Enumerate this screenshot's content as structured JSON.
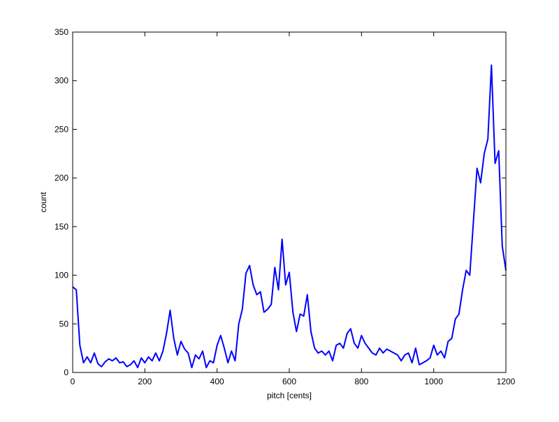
{
  "chart_data": {
    "type": "line",
    "title": "",
    "xlabel": "pitch [cents]",
    "ylabel": "count",
    "xlim": [
      0,
      1200
    ],
    "ylim": [
      0,
      350
    ],
    "xticks": [
      0,
      200,
      400,
      600,
      800,
      1000,
      1200
    ],
    "yticks": [
      0,
      50,
      100,
      150,
      200,
      250,
      300,
      350
    ],
    "grid": false,
    "legend": "none",
    "series": [
      {
        "color": "#0000ff",
        "x": [
          0,
          10,
          20,
          30,
          40,
          50,
          60,
          70,
          80,
          90,
          100,
          110,
          120,
          130,
          140,
          150,
          160,
          170,
          180,
          190,
          200,
          210,
          220,
          230,
          240,
          250,
          260,
          270,
          280,
          290,
          300,
          310,
          320,
          330,
          340,
          350,
          360,
          370,
          380,
          390,
          400,
          410,
          420,
          430,
          440,
          450,
          460,
          470,
          480,
          490,
          500,
          510,
          520,
          530,
          540,
          550,
          560,
          570,
          580,
          590,
          600,
          610,
          620,
          630,
          640,
          650,
          660,
          670,
          680,
          690,
          700,
          710,
          720,
          730,
          740,
          750,
          760,
          770,
          780,
          790,
          800,
          810,
          820,
          830,
          840,
          850,
          860,
          870,
          880,
          890,
          900,
          910,
          920,
          930,
          940,
          950,
          960,
          970,
          980,
          990,
          1000,
          1010,
          1020,
          1030,
          1040,
          1050,
          1060,
          1070,
          1080,
          1090,
          1100,
          1110,
          1120,
          1130,
          1140,
          1150,
          1160,
          1170,
          1180,
          1190,
          1200
        ],
        "y": [
          88,
          85,
          28,
          10,
          16,
          10,
          20,
          9,
          6,
          11,
          14,
          12,
          15,
          10,
          11,
          6,
          8,
          12,
          5,
          15,
          10,
          16,
          12,
          20,
          12,
          22,
          40,
          64,
          35,
          18,
          32,
          24,
          20,
          5,
          18,
          14,
          22,
          5,
          12,
          10,
          28,
          38,
          25,
          10,
          22,
          12,
          50,
          65,
          102,
          110,
          90,
          80,
          83,
          62,
          65,
          70,
          108,
          85,
          137,
          90,
          103,
          62,
          42,
          60,
          58,
          80,
          42,
          25,
          20,
          22,
          18,
          22,
          12,
          28,
          30,
          25,
          40,
          45,
          30,
          25,
          38,
          30,
          25,
          20,
          18,
          25,
          20,
          24,
          22,
          20,
          18,
          12,
          18,
          20,
          10,
          25,
          8,
          10,
          12,
          15,
          28,
          18,
          22,
          15,
          32,
          35,
          55,
          60,
          85,
          105,
          100,
          155,
          210,
          195,
          225,
          240,
          316,
          215,
          228,
          130,
          105
        ]
      }
    ]
  }
}
